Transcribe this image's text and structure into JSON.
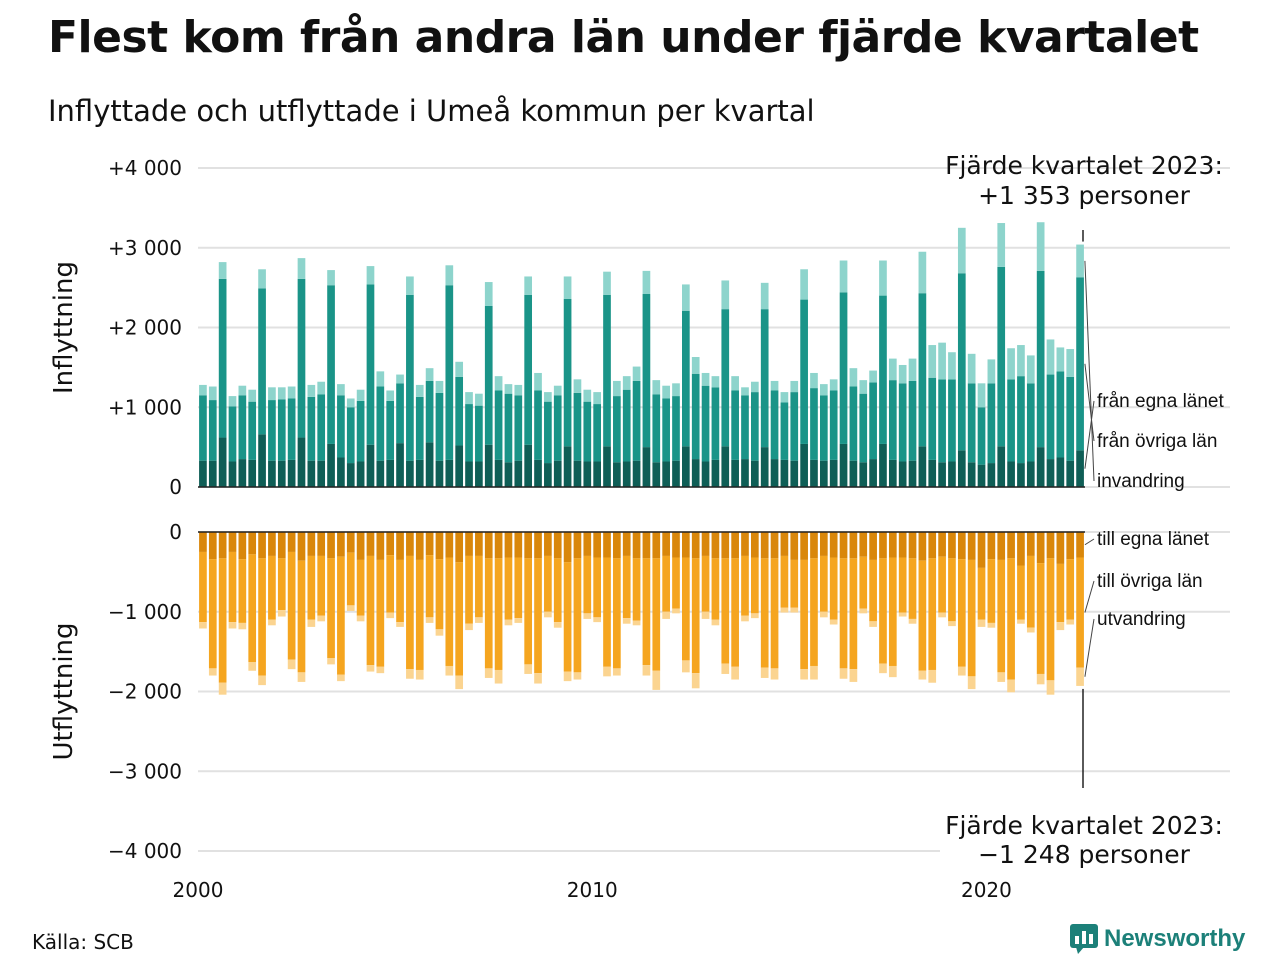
{
  "title": "Flest kom från andra län under fjärde kvartalet",
  "subtitle": "Inflyttade och utflyttade i Umeå kommun per kvartal",
  "source": "Källa: SCB",
  "brand": {
    "name": "Newsworthy",
    "color": "#1c8079",
    "icon": "bar-chart-logo-icon"
  },
  "chart_data": {
    "type": "bar",
    "stacked": true,
    "grid": true,
    "x_ticks": [
      {
        "value": 2000,
        "label": "2000"
      },
      {
        "value": 2010,
        "label": "2010"
      },
      {
        "value": 2020,
        "label": "2020"
      }
    ],
    "start_year": 2000,
    "quarters_per_year": 4,
    "panels": [
      {
        "ylabel": "Inflyttning",
        "ylim": [
          0,
          4000
        ],
        "y_ticks": [
          {
            "value": 0,
            "label": "0"
          },
          {
            "value": 1000,
            "label": "+1 000"
          },
          {
            "value": 2000,
            "label": "+2 000"
          },
          {
            "value": 3000,
            "label": "+3 000"
          },
          {
            "value": 4000,
            "label": "+4 000"
          }
        ],
        "annotation": {
          "line1": "Fjärde kvartalet 2023:",
          "line2": "+1 353 personer"
        },
        "series": [
          {
            "name": "från egna länet",
            "color": "#0f5e56",
            "values": [
              330,
              330,
              620,
              320,
              350,
              340,
              660,
              330,
              330,
              340,
              620,
              330,
              330,
              540,
              370,
              300,
              320,
              530,
              330,
              340,
              550,
              330,
              340,
              560,
              330,
              340,
              520,
              320,
              320,
              530,
              340,
              310,
              330,
              530,
              340,
              300,
              330,
              510,
              330,
              320,
              320,
              510,
              310,
              320,
              330,
              500,
              310,
              320,
              330,
              510,
              350,
              320,
              340,
              510,
              340,
              350,
              330,
              500,
              350,
              340,
              330,
              540,
              340,
              330,
              340,
              540,
              330,
              310,
              350,
              540,
              340,
              320,
              330,
              510,
              340,
              310,
              320,
              460,
              310,
              280,
              300,
              510,
              320,
              300,
              320,
              500,
              350,
              370,
              330,
              460
            ]
          },
          {
            "name": "från övriga län",
            "color": "#1a9488",
            "values": [
              820,
              760,
              1990,
              690,
              800,
              730,
              1830,
              760,
              770,
              770,
              1990,
              800,
              830,
              1990,
              780,
              700,
              760,
              2010,
              930,
              740,
              750,
              2080,
              790,
              770,
              850,
              2190,
              860,
              720,
              700,
              1740,
              870,
              860,
              820,
              1880,
              870,
              770,
              820,
              1850,
              850,
              750,
              720,
              1900,
              830,
              900,
              1000,
              1920,
              850,
              790,
              810,
              1700,
              1070,
              950,
              910,
              1720,
              870,
              800,
              860,
              1730,
              860,
              720,
              860,
              1810,
              900,
              820,
              870,
              1900,
              930,
              860,
              960,
              1860,
              1000,
              980,
              1000,
              1920,
              1030,
              1040,
              1030,
              2220,
              990,
              720,
              1000,
              2250,
              1030,
              1090,
              980,
              2210,
              1060,
              1080,
              1050,
              2170
            ]
          },
          {
            "name": "invandring",
            "color": "#8dd4cc",
            "values": [
              130,
              170,
              210,
              130,
              120,
              150,
              240,
              160,
              150,
              150,
              260,
              150,
              160,
              190,
              140,
              110,
              140,
              230,
              190,
              130,
              110,
              230,
              150,
              160,
              150,
              250,
              190,
              150,
              150,
              300,
              180,
              120,
              130,
              230,
              220,
              120,
              120,
              280,
              170,
              150,
              150,
              290,
              190,
              170,
              180,
              290,
              180,
              160,
              160,
              330,
              210,
              160,
              140,
              360,
              180,
              100,
              130,
              330,
              120,
              130,
              140,
              380,
              190,
              140,
              140,
              400,
              230,
              170,
              150,
              440,
              270,
              230,
              280,
              520,
              410,
              460,
              340,
              570,
              370,
              300,
              300,
              550,
              390,
              390,
              350,
              610,
              440,
              300,
              350,
              410
            ]
          }
        ]
      },
      {
        "ylabel": "Utflyttning",
        "ylim": [
          -4000,
          0
        ],
        "y_ticks": [
          {
            "value": 0,
            "label": "0"
          },
          {
            "value": -1000,
            "label": "−1 000"
          },
          {
            "value": -2000,
            "label": "−2 000"
          },
          {
            "value": -3000,
            "label": "−3 000"
          },
          {
            "value": -4000,
            "label": "−4 000"
          }
        ],
        "annotation": {
          "line1": "Fjärde kvartalet 2023:",
          "line2": "−1 248 personer"
        },
        "series": [
          {
            "name": "till egna länet",
            "color": "#d9870b",
            "values": [
              -250,
              -340,
              -330,
              -250,
              -340,
              -280,
              -330,
              -300,
              -330,
              -250,
              -360,
              -300,
              -300,
              -330,
              -310,
              -260,
              -350,
              -300,
              -350,
              -290,
              -350,
              -300,
              -350,
              -290,
              -340,
              -320,
              -380,
              -300,
              -300,
              -330,
              -330,
              -320,
              -320,
              -330,
              -330,
              -300,
              -330,
              -380,
              -330,
              -300,
              -320,
              -320,
              -330,
              -300,
              -330,
              -330,
              -330,
              -300,
              -320,
              -320,
              -330,
              -300,
              -330,
              -330,
              -330,
              -300,
              -320,
              -330,
              -330,
              -300,
              -350,
              -350,
              -330,
              -300,
              -320,
              -330,
              -330,
              -310,
              -350,
              -330,
              -320,
              -320,
              -330,
              -360,
              -330,
              -310,
              -330,
              -340,
              -350,
              -450,
              -340,
              -350,
              -330,
              -420,
              -300,
              -390,
              -330,
              -400,
              -340,
              -320
            ]
          },
          {
            "name": "till övriga län",
            "color": "#f5a51f",
            "values": [
              -880,
              -1370,
              -1560,
              -880,
              -800,
              -1350,
              -1470,
              -800,
              -650,
              -1350,
              -1400,
              -800,
              -750,
              -1250,
              -1480,
              -660,
              -700,
              -1370,
              -1340,
              -720,
              -780,
              -1420,
              -1380,
              -780,
              -880,
              -1360,
              -1420,
              -850,
              -770,
              -1380,
              -1400,
              -780,
              -760,
              -1330,
              -1440,
              -700,
              -800,
              -1370,
              -1430,
              -720,
              -750,
              -1370,
              -1380,
              -780,
              -780,
              -1340,
              -1410,
              -700,
              -640,
              -1290,
              -1440,
              -700,
              -770,
              -1320,
              -1360,
              -750,
              -700,
              -1370,
              -1380,
              -650,
              -600,
              -1370,
              -1350,
              -700,
              -780,
              -1380,
              -1390,
              -650,
              -770,
              -1320,
              -1360,
              -690,
              -760,
              -1380,
              -1400,
              -700,
              -790,
              -1350,
              -1460,
              -650,
              -800,
              -1410,
              -1520,
              -680,
              -900,
              -1390,
              -1530,
              -730,
              -760,
              -1380
            ]
          },
          {
            "name": "utvandring",
            "color": "#fbd490",
            "values": [
              -80,
              -90,
              -150,
              -80,
              -80,
              -110,
              -120,
              -70,
              -80,
              -120,
              -120,
              -90,
              -70,
              -80,
              -80,
              -70,
              -70,
              -80,
              -80,
              -70,
              -60,
              -120,
              -120,
              -70,
              -80,
              -120,
              -170,
              -80,
              -70,
              -120,
              -170,
              -70,
              -60,
              -120,
              -130,
              -70,
              -70,
              -120,
              -90,
              -70,
              -60,
              -120,
              -90,
              -70,
              -60,
              -130,
              -240,
              -90,
              -60,
              -150,
              -190,
              -90,
              -70,
              -130,
              -160,
              -70,
              -60,
              -130,
              -140,
              -60,
              -60,
              -130,
              -170,
              -70,
              -60,
              -130,
              -160,
              -60,
              -70,
              -120,
              -140,
              -50,
              -60,
              -110,
              -160,
              -60,
              -60,
              -110,
              -160,
              -90,
              -60,
              -120,
              -160,
              -50,
              -60,
              -130,
              -180,
              -100,
              -60,
              -230
            ]
          }
        ]
      }
    ]
  }
}
